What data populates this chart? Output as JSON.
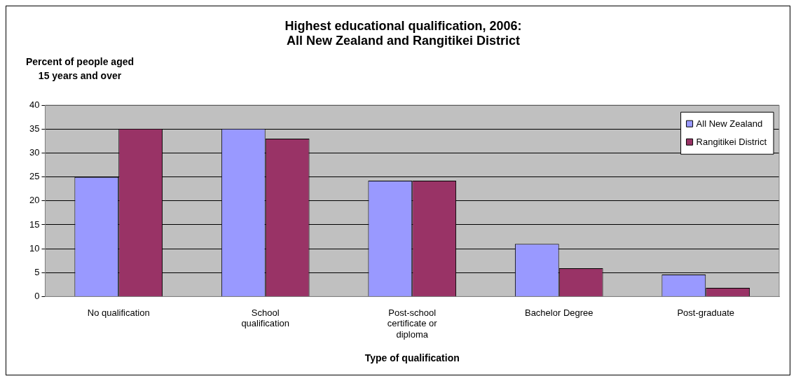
{
  "chart_data": {
    "type": "bar",
    "title": "Highest educational qualification, 2006: All New Zealand and Rangitikei District",
    "ylabel": "Percent of people aged 15 years and over",
    "xlabel": "Type of qualification",
    "categories": [
      "No qualification",
      "School qualification",
      "Post-school certificate or diploma",
      "Bachelor Degree",
      "Post-graduate"
    ],
    "series": [
      {
        "name": "All New Zealand",
        "color": "#9999ff",
        "values": [
          25,
          35.1,
          24.2,
          11,
          4.6
        ]
      },
      {
        "name": "Rangitikei District",
        "color": "#993366",
        "values": [
          35.1,
          33,
          24.2,
          5.9,
          1.8
        ]
      }
    ],
    "ylim": [
      0,
      40
    ],
    "yticks": [
      0,
      5,
      10,
      15,
      20,
      25,
      30,
      35,
      40
    ],
    "grid": "y",
    "legend": "top right"
  }
}
